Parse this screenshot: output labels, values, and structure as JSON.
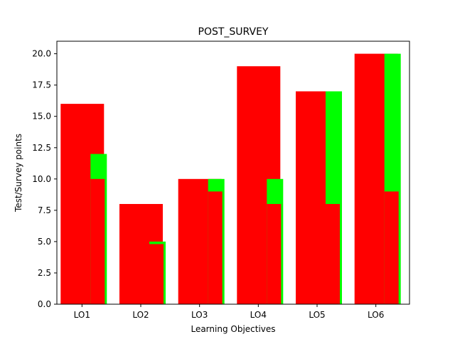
{
  "chart_data": {
    "type": "bar",
    "title": "POST_SURVEY",
    "xlabel": "Learning Objectives",
    "ylabel": "Test/Survey points",
    "categories": [
      "LO1",
      "LO2",
      "LO3",
      "LO4",
      "LO5",
      "LO6"
    ],
    "ylim": [
      0,
      21
    ],
    "yticks": [
      0.0,
      2.5,
      5.0,
      7.5,
      10.0,
      12.5,
      15.0,
      17.5,
      20.0
    ],
    "ytick_labels": [
      "0.0",
      "2.5",
      "5.0",
      "7.5",
      "10.0",
      "12.5",
      "15.0",
      "17.5",
      "20.0"
    ],
    "grid": false,
    "legend": "none",
    "layers": [
      {
        "role": "wide",
        "color": "#ff0000",
        "values": [
          16,
          8,
          10,
          19,
          17,
          20
        ]
      },
      {
        "role": "narrow",
        "color": "#00ff00",
        "values": [
          12,
          5,
          10,
          10,
          17,
          20
        ]
      },
      {
        "role": "narrow-inner",
        "color": "#ff0000",
        "values": [
          10,
          4.8,
          9,
          8,
          8,
          9
        ]
      }
    ]
  }
}
